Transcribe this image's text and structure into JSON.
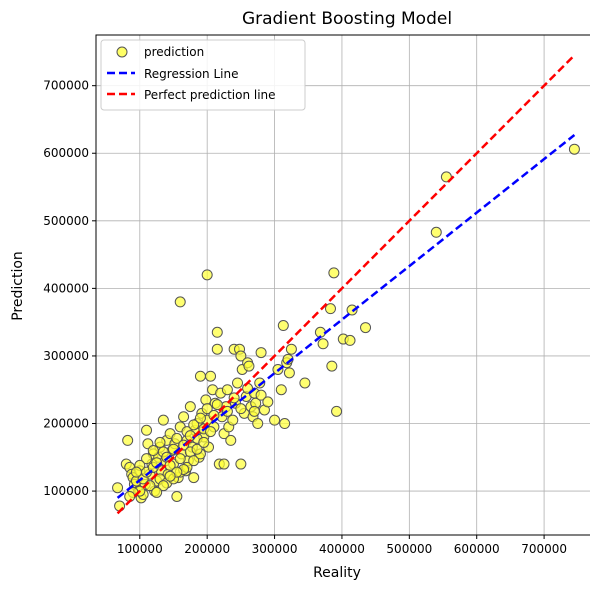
{
  "chart_data": {
    "type": "scatter",
    "title": "Gradient Boosting Model",
    "xlabel": "Reality",
    "ylabel": "Prediction",
    "xlim": [
      35000,
      780000
    ],
    "ylim": [
      35000,
      775000
    ],
    "xticks": [
      100000,
      200000,
      300000,
      400000,
      500000,
      600000,
      700000
    ],
    "yticks": [
      100000,
      200000,
      300000,
      400000,
      500000,
      600000,
      700000
    ],
    "grid": true,
    "legend_position": "top-left",
    "legend": [
      {
        "label": "prediction",
        "kind": "marker",
        "color": "#ffff33"
      },
      {
        "label": "Regression Line",
        "kind": "line",
        "color": "#0000ff"
      },
      {
        "label": "Perfect prediction line",
        "kind": "line",
        "color": "#ff0000"
      }
    ],
    "regression_line": {
      "x": [
        67000,
        745000
      ],
      "y": [
        90000,
        627000
      ]
    },
    "perfect_line": {
      "x": [
        67000,
        745000
      ],
      "y": [
        67000,
        745000
      ]
    },
    "points": [
      [
        67000,
        105000
      ],
      [
        70000,
        78000
      ],
      [
        82000,
        175000
      ],
      [
        80000,
        140000
      ],
      [
        85000,
        135000
      ],
      [
        88000,
        125000
      ],
      [
        90000,
        120000
      ],
      [
        92000,
        110000
      ],
      [
        95000,
        115000
      ],
      [
        98000,
        100000
      ],
      [
        100000,
        130000
      ],
      [
        102000,
        90000
      ],
      [
        105000,
        95000
      ],
      [
        108000,
        110000
      ],
      [
        110000,
        190000
      ],
      [
        112000,
        170000
      ],
      [
        115000,
        125000
      ],
      [
        118000,
        140000
      ],
      [
        120000,
        155000
      ],
      [
        122000,
        100000
      ],
      [
        125000,
        115000
      ],
      [
        128000,
        150000
      ],
      [
        130000,
        165000
      ],
      [
        132000,
        130000
      ],
      [
        135000,
        205000
      ],
      [
        138000,
        145000
      ],
      [
        140000,
        175000
      ],
      [
        142000,
        125000
      ],
      [
        145000,
        185000
      ],
      [
        148000,
        160000
      ],
      [
        150000,
        140000
      ],
      [
        152000,
        170000
      ],
      [
        155000,
        92000
      ],
      [
        157000,
        120000
      ],
      [
        160000,
        380000
      ],
      [
        160000,
        195000
      ],
      [
        162000,
        155000
      ],
      [
        165000,
        210000
      ],
      [
        168000,
        130000
      ],
      [
        170000,
        175000
      ],
      [
        172000,
        145000
      ],
      [
        175000,
        225000
      ],
      [
        178000,
        165000
      ],
      [
        180000,
        120000
      ],
      [
        182000,
        190000
      ],
      [
        185000,
        200000
      ],
      [
        188000,
        150000
      ],
      [
        190000,
        270000
      ],
      [
        192000,
        215000
      ],
      [
        195000,
        180000
      ],
      [
        198000,
        235000
      ],
      [
        200000,
        420000
      ],
      [
        200000,
        205000
      ],
      [
        202000,
        165000
      ],
      [
        205000,
        270000
      ],
      [
        208000,
        250000
      ],
      [
        210000,
        195000
      ],
      [
        212000,
        230000
      ],
      [
        215000,
        335000
      ],
      [
        215000,
        310000
      ],
      [
        218000,
        140000
      ],
      [
        220000,
        245000
      ],
      [
        222000,
        210000
      ],
      [
        225000,
        185000
      ],
      [
        225000,
        140000
      ],
      [
        228000,
        225000
      ],
      [
        230000,
        250000
      ],
      [
        232000,
        195000
      ],
      [
        235000,
        175000
      ],
      [
        238000,
        205000
      ],
      [
        240000,
        310000
      ],
      [
        242000,
        230000
      ],
      [
        245000,
        260000
      ],
      [
        248000,
        310000
      ],
      [
        250000,
        300000
      ],
      [
        250000,
        140000
      ],
      [
        252000,
        280000
      ],
      [
        255000,
        215000
      ],
      [
        258000,
        240000
      ],
      [
        260000,
        290000
      ],
      [
        262000,
        285000
      ],
      [
        265000,
        225000
      ],
      [
        268000,
        210000
      ],
      [
        270000,
        245000
      ],
      [
        272000,
        230000
      ],
      [
        275000,
        200000
      ],
      [
        278000,
        260000
      ],
      [
        280000,
        305000
      ],
      [
        285000,
        220000
      ],
      [
        300000,
        205000
      ],
      [
        305000,
        280000
      ],
      [
        310000,
        250000
      ],
      [
        313000,
        345000
      ],
      [
        315000,
        200000
      ],
      [
        318000,
        290000
      ],
      [
        320000,
        295000
      ],
      [
        322000,
        275000
      ],
      [
        325000,
        310000
      ],
      [
        345000,
        260000
      ],
      [
        368000,
        335000
      ],
      [
        372000,
        318000
      ],
      [
        383000,
        370000
      ],
      [
        385000,
        285000
      ],
      [
        388000,
        423000
      ],
      [
        392000,
        218000
      ],
      [
        402000,
        325000
      ],
      [
        412000,
        323000
      ],
      [
        415000,
        368000
      ],
      [
        435000,
        342000
      ],
      [
        540000,
        483000
      ],
      [
        555000,
        565000
      ],
      [
        745000,
        606000
      ],
      [
        100000,
        100000
      ],
      [
        105000,
        118000
      ],
      [
        110000,
        128000
      ],
      [
        115000,
        108000
      ],
      [
        120000,
        135000
      ],
      [
        125000,
        142000
      ],
      [
        130000,
        118000
      ],
      [
        135000,
        158000
      ],
      [
        140000,
        150000
      ],
      [
        145000,
        138000
      ],
      [
        150000,
        162000
      ],
      [
        155000,
        178000
      ],
      [
        160000,
        148000
      ],
      [
        165000,
        168000
      ],
      [
        170000,
        188000
      ],
      [
        175000,
        158000
      ],
      [
        180000,
        198000
      ],
      [
        185000,
        178000
      ],
      [
        190000,
        208000
      ],
      [
        195000,
        192000
      ],
      [
        200000,
        222000
      ],
      [
        205000,
        188000
      ],
      [
        210000,
        212000
      ],
      [
        215000,
        228000
      ],
      [
        140000,
        112000
      ],
      [
        150000,
        118000
      ],
      [
        160000,
        128000
      ],
      [
        170000,
        135000
      ],
      [
        180000,
        145000
      ],
      [
        190000,
        155000
      ],
      [
        130000,
        172000
      ],
      [
        120000,
        160000
      ],
      [
        110000,
        148000
      ],
      [
        100000,
        138000
      ],
      [
        95000,
        128000
      ],
      [
        90000,
        98000
      ],
      [
        85000,
        92000
      ],
      [
        175000,
        182000
      ],
      [
        185000,
        162000
      ],
      [
        195000,
        172000
      ],
      [
        165000,
        132000
      ],
      [
        155000,
        128000
      ],
      [
        145000,
        122000
      ],
      [
        135000,
        108000
      ],
      [
        125000,
        98000
      ],
      [
        230000,
        218000
      ],
      [
        240000,
        238000
      ],
      [
        250000,
        222000
      ],
      [
        260000,
        252000
      ],
      [
        270000,
        218000
      ],
      [
        280000,
        242000
      ],
      [
        290000,
        232000
      ]
    ]
  }
}
